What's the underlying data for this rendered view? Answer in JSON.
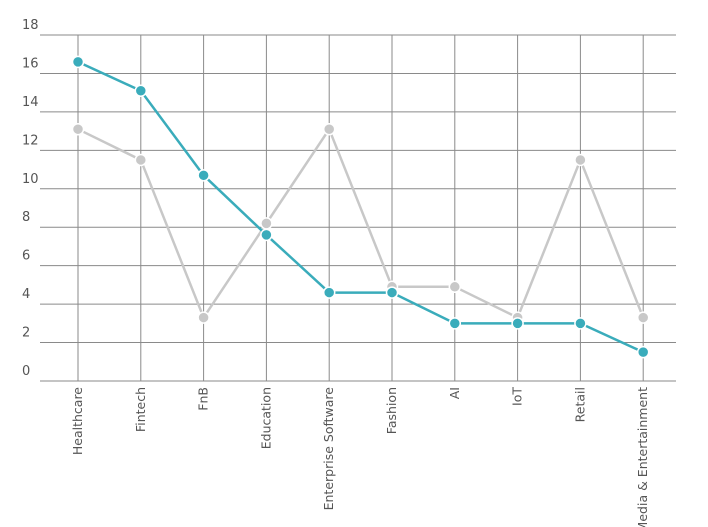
{
  "chart_data": {
    "type": "line",
    "title": "",
    "xlabel": "",
    "ylabel": "",
    "ylim": [
      0,
      18
    ],
    "yticks": [
      0,
      2,
      4,
      6,
      8,
      10,
      12,
      14,
      16,
      18
    ],
    "grid": true,
    "legend": "none",
    "categories": [
      "Healthcare",
      "Fintech",
      "FnB",
      "Education",
      "Enterprise Software",
      "Fashion",
      "AI",
      "IoT",
      "Retail",
      "Media & Entertainment"
    ],
    "series": [
      {
        "color": "#c8c8c8",
        "values": [
          13.1,
          11.5,
          3.3,
          8.2,
          13.1,
          4.9,
          4.9,
          3.3,
          11.5,
          3.3
        ]
      },
      {
        "color": "#3aacbb",
        "values": [
          16.6,
          15.1,
          10.7,
          7.6,
          4.6,
          4.6,
          3.0,
          3.0,
          3.0,
          1.5
        ]
      }
    ]
  }
}
